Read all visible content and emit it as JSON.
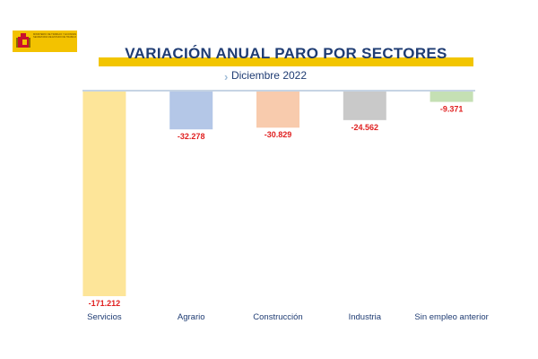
{
  "logo": {
    "ministry_text": "MINISTERIO DE TRABAJO Y ECONOMÍA SOCIAL",
    "agency_text": "SECRETARÍA DE ESTADO DE TRABAJO"
  },
  "chart_data": {
    "type": "bar",
    "title": "VARIACIÓN ANUAL PARO POR SECTORES",
    "subtitle": "Diciembre 2022",
    "categories": [
      "Servicios",
      "Agrario",
      "Construcción",
      "Industria",
      "Sin empleo anterior"
    ],
    "values": [
      -171212,
      -32278,
      -30829,
      -24562,
      -9371
    ],
    "value_labels": [
      "-171.212",
      "-32.278",
      "-30.829",
      "-24.562",
      "-9.371"
    ],
    "colors": [
      "#fde599",
      "#b4c7e7",
      "#f8cbad",
      "#c9c9c9",
      "#c5e0b4"
    ],
    "ylim": [
      -171212,
      0
    ],
    "grid": false,
    "legend": "none"
  },
  "colors": {
    "title": "#1f3c73",
    "label_red": "#e02020",
    "brand_yellow": "#f2c500"
  }
}
